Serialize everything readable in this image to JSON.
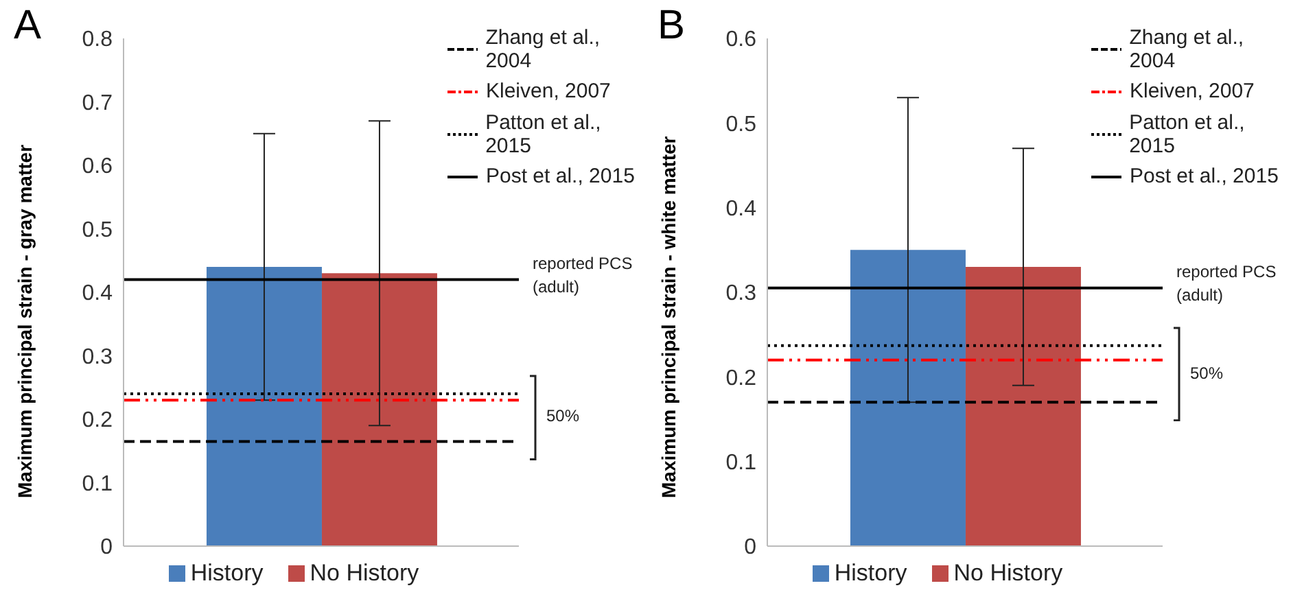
{
  "chart_data": [
    {
      "type": "bar",
      "title": "A",
      "ylabel": "Maximum principal strain - gray matter",
      "categories": [
        null
      ],
      "ylim": [
        0,
        0.8
      ],
      "yticks": [
        0,
        0.1,
        0.2,
        0.3,
        0.4,
        0.5,
        0.6,
        0.7,
        0.8
      ],
      "legend": "bottom",
      "series": [
        {
          "name": "History",
          "color": "#4a7ebb",
          "values": [
            0.44
          ],
          "errors": [
            [
              0.23,
              0.65
            ]
          ]
        },
        {
          "name": "No History",
          "color": "#be4b48",
          "values": [
            0.43
          ],
          "errors": [
            [
              0.19,
              0.67
            ]
          ]
        }
      ],
      "ref_lines": [
        {
          "axis": "y",
          "value": 0.165,
          "label": "Zhang et al., 2004",
          "color": "#000000",
          "line_style": "dashed"
        },
        {
          "axis": "y",
          "value": 0.23,
          "label": "Kleiven, 2007",
          "color": "#ff0000",
          "line_style": "dashdot"
        },
        {
          "axis": "y",
          "value": 0.24,
          "label": "Patton et al., 2015",
          "color": "#000000",
          "line_style": "dotted"
        },
        {
          "axis": "y",
          "value": 0.42,
          "label": "Post et al., 2015",
          "color": "#000000",
          "line_style": "solid"
        }
      ],
      "annotations": [
        "reported PCS (adult)",
        "50%"
      ]
    },
    {
      "type": "bar",
      "title": "B",
      "ylabel": "Maximum principal strain - white matter",
      "categories": [
        null
      ],
      "ylim": [
        0,
        0.6
      ],
      "yticks": [
        0,
        0.1,
        0.2,
        0.3,
        0.4,
        0.5,
        0.6
      ],
      "legend": "bottom",
      "series": [
        {
          "name": "History",
          "color": "#4a7ebb",
          "values": [
            0.35
          ],
          "errors": [
            [
              0.17,
              0.53
            ]
          ]
        },
        {
          "name": "No History",
          "color": "#be4b48",
          "values": [
            0.33
          ],
          "errors": [
            [
              0.19,
              0.47
            ]
          ]
        }
      ],
      "ref_lines": [
        {
          "axis": "y",
          "value": 0.17,
          "label": "Zhang et al., 2004",
          "color": "#000000",
          "line_style": "dashed"
        },
        {
          "axis": "y",
          "value": 0.22,
          "label": "Kleiven, 2007",
          "color": "#ff0000",
          "line_style": "dashdot"
        },
        {
          "axis": "y",
          "value": 0.237,
          "label": "Patton et al., 2015",
          "color": "#000000",
          "line_style": "dotted"
        },
        {
          "axis": "y",
          "value": 0.305,
          "label": "Post et al., 2015",
          "color": "#000000",
          "line_style": "solid"
        }
      ],
      "annotations": [
        "reported PCS (adult)",
        "50%"
      ]
    }
  ]
}
